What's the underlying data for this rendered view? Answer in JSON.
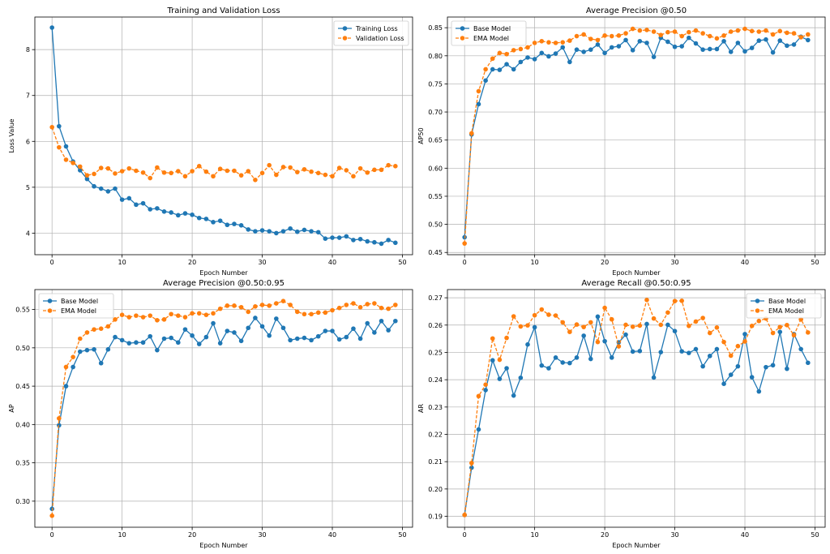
{
  "colors": {
    "series1": "#1f77b4",
    "series2": "#ff7f0e",
    "grid": "#b0b0b0",
    "axis": "#000000"
  },
  "chart_data": [
    {
      "type": "line",
      "title": "Training and Validation Loss",
      "xlabel": "Epoch Number",
      "ylabel": "Loss Value",
      "xlim": [
        -2.45,
        51.45
      ],
      "ylim": [
        3.53,
        8.71
      ],
      "xticks": [
        0,
        10,
        20,
        30,
        40,
        50
      ],
      "xtick_labels": [
        "0",
        "10",
        "20",
        "30",
        "40",
        "50"
      ],
      "yticks": [
        4,
        5,
        6,
        7,
        8
      ],
      "ytick_labels": [
        "4",
        "5",
        "6",
        "7",
        "8"
      ],
      "grid": true,
      "legend_position": "top-right",
      "series": [
        {
          "name": "Training Loss",
          "style": "solid",
          "values": [
            8.48,
            6.33,
            5.89,
            5.56,
            5.37,
            5.18,
            5.02,
            4.97,
            4.91,
            4.97,
            4.73,
            4.76,
            4.62,
            4.65,
            4.52,
            4.54,
            4.47,
            4.45,
            4.39,
            4.43,
            4.4,
            4.33,
            4.31,
            4.24,
            4.27,
            4.18,
            4.2,
            4.17,
            4.08,
            4.04,
            4.06,
            4.04,
            4.0,
            4.04,
            4.1,
            4.03,
            4.07,
            4.04,
            4.02,
            3.88,
            3.9,
            3.9,
            3.93,
            3.85,
            3.87,
            3.82,
            3.8,
            3.77,
            3.85,
            3.79
          ]
        },
        {
          "name": "Validation Loss",
          "style": "dashed",
          "values": [
            6.31,
            5.87,
            5.6,
            5.53,
            5.45,
            5.26,
            5.29,
            5.42,
            5.41,
            5.3,
            5.35,
            5.41,
            5.36,
            5.32,
            5.2,
            5.43,
            5.32,
            5.31,
            5.35,
            5.24,
            5.35,
            5.46,
            5.34,
            5.24,
            5.4,
            5.36,
            5.36,
            5.26,
            5.35,
            5.16,
            5.31,
            5.48,
            5.27,
            5.44,
            5.43,
            5.33,
            5.39,
            5.34,
            5.31,
            5.27,
            5.24,
            5.42,
            5.37,
            5.24,
            5.41,
            5.32,
            5.38,
            5.38,
            5.48,
            5.46
          ]
        }
      ]
    },
    {
      "type": "line",
      "title": "Average Precision @0.50",
      "xlabel": "Epoch Number",
      "ylabel": "AP50",
      "xlim": [
        -2.45,
        51.45
      ],
      "ylim": [
        0.446,
        0.869
      ],
      "xticks": [
        0,
        10,
        20,
        30,
        40,
        50
      ],
      "xtick_labels": [
        "0",
        "10",
        "20",
        "30",
        "40",
        "50"
      ],
      "yticks": [
        0.45,
        0.5,
        0.55,
        0.6,
        0.65,
        0.7,
        0.75,
        0.8,
        0.85
      ],
      "ytick_labels": [
        "0.45",
        "0.50",
        "0.55",
        "0.60",
        "0.65",
        "0.70",
        "0.75",
        "0.80",
        "0.85"
      ],
      "grid": true,
      "legend_position": "top-left",
      "series": [
        {
          "name": "Base Model",
          "style": "solid",
          "values": [
            0.477,
            0.66,
            0.714,
            0.756,
            0.776,
            0.775,
            0.785,
            0.776,
            0.789,
            0.797,
            0.794,
            0.805,
            0.799,
            0.804,
            0.815,
            0.789,
            0.811,
            0.807,
            0.811,
            0.82,
            0.805,
            0.815,
            0.817,
            0.828,
            0.81,
            0.826,
            0.823,
            0.798,
            0.832,
            0.825,
            0.816,
            0.817,
            0.832,
            0.822,
            0.811,
            0.812,
            0.812,
            0.826,
            0.807,
            0.823,
            0.808,
            0.814,
            0.827,
            0.829,
            0.806,
            0.827,
            0.818,
            0.82,
            0.834,
            0.828
          ]
        },
        {
          "name": "EMA Model",
          "style": "dashed",
          "values": [
            0.466,
            0.662,
            0.737,
            0.776,
            0.795,
            0.805,
            0.803,
            0.81,
            0.812,
            0.815,
            0.823,
            0.826,
            0.824,
            0.823,
            0.824,
            0.827,
            0.835,
            0.838,
            0.83,
            0.828,
            0.836,
            0.835,
            0.836,
            0.84,
            0.848,
            0.845,
            0.846,
            0.843,
            0.837,
            0.842,
            0.843,
            0.835,
            0.842,
            0.845,
            0.84,
            0.835,
            0.831,
            0.836,
            0.843,
            0.845,
            0.848,
            0.844,
            0.843,
            0.845,
            0.838,
            0.844,
            0.841,
            0.84,
            0.833,
            0.838
          ]
        }
      ]
    },
    {
      "type": "line",
      "title": "Average Precision @0.50:0.95",
      "xlabel": "Epoch Number",
      "ylabel": "AP",
      "xlim": [
        -2.45,
        51.45
      ],
      "ylim": [
        0.266,
        0.576
      ],
      "xticks": [
        0,
        10,
        20,
        30,
        40,
        50
      ],
      "xtick_labels": [
        "0",
        "10",
        "20",
        "30",
        "40",
        "50"
      ],
      "yticks": [
        0.3,
        0.35,
        0.4,
        0.45,
        0.5,
        0.55
      ],
      "ytick_labels": [
        "0.30",
        "0.35",
        "0.40",
        "0.45",
        "0.50",
        "0.55"
      ],
      "grid": true,
      "legend_position": "top-left",
      "series": [
        {
          "name": "Base Model",
          "style": "solid",
          "values": [
            0.29,
            0.399,
            0.45,
            0.475,
            0.495,
            0.497,
            0.498,
            0.48,
            0.498,
            0.514,
            0.51,
            0.506,
            0.507,
            0.507,
            0.515,
            0.497,
            0.512,
            0.513,
            0.507,
            0.524,
            0.516,
            0.505,
            0.514,
            0.532,
            0.506,
            0.522,
            0.52,
            0.509,
            0.526,
            0.539,
            0.528,
            0.516,
            0.538,
            0.526,
            0.51,
            0.512,
            0.513,
            0.51,
            0.515,
            0.522,
            0.522,
            0.511,
            0.514,
            0.525,
            0.512,
            0.532,
            0.52,
            0.535,
            0.523,
            0.535
          ]
        },
        {
          "name": "EMA Model",
          "style": "dashed",
          "values": [
            0.281,
            0.408,
            0.475,
            0.488,
            0.512,
            0.52,
            0.524,
            0.525,
            0.528,
            0.537,
            0.543,
            0.54,
            0.542,
            0.54,
            0.542,
            0.536,
            0.537,
            0.544,
            0.542,
            0.54,
            0.545,
            0.545,
            0.543,
            0.545,
            0.551,
            0.555,
            0.555,
            0.553,
            0.547,
            0.554,
            0.556,
            0.555,
            0.558,
            0.561,
            0.556,
            0.547,
            0.544,
            0.544,
            0.546,
            0.546,
            0.549,
            0.552,
            0.556,
            0.558,
            0.553,
            0.557,
            0.558,
            0.552,
            0.551,
            0.556
          ]
        }
      ]
    },
    {
      "type": "line",
      "title": "Average Recall @0.50:0.95",
      "xlabel": "Epoch Number",
      "ylabel": "AR",
      "xlim": [
        -2.45,
        51.45
      ],
      "ylim": [
        0.186,
        0.273
      ],
      "xticks": [
        0,
        10,
        20,
        30,
        40,
        50
      ],
      "xtick_labels": [
        "0",
        "10",
        "20",
        "30",
        "40",
        "50"
      ],
      "yticks": [
        0.19,
        0.2,
        0.21,
        0.22,
        0.23,
        0.24,
        0.25,
        0.26,
        0.27
      ],
      "ytick_labels": [
        "0.19",
        "0.20",
        "0.21",
        "0.22",
        "0.23",
        "0.24",
        "0.25",
        "0.26",
        "0.27"
      ],
      "grid": true,
      "legend_position": "top-right",
      "series": [
        {
          "name": "Base Model",
          "style": "solid",
          "values": [
            0.1905,
            0.2078,
            0.2218,
            0.2362,
            0.2471,
            0.2403,
            0.2442,
            0.2342,
            0.2407,
            0.2529,
            0.2592,
            0.2452,
            0.2442,
            0.2481,
            0.2463,
            0.2461,
            0.2481,
            0.2561,
            0.2476,
            0.2631,
            0.2541,
            0.2481,
            0.2537,
            0.2565,
            0.2503,
            0.2505,
            0.2604,
            0.2408,
            0.2501,
            0.2601,
            0.2578,
            0.2504,
            0.2498,
            0.2512,
            0.2449,
            0.2487,
            0.2512,
            0.2385,
            0.2418,
            0.2449,
            0.2567,
            0.2409,
            0.2357,
            0.2446,
            0.2453,
            0.2575,
            0.244,
            0.2567,
            0.2512,
            0.2462
          ]
        },
        {
          "name": "EMA Model",
          "style": "dashed",
          "values": [
            0.1905,
            0.2095,
            0.234,
            0.2382,
            0.2551,
            0.2473,
            0.2553,
            0.2632,
            0.2595,
            0.2599,
            0.2636,
            0.2657,
            0.2638,
            0.2635,
            0.261,
            0.2575,
            0.2602,
            0.2593,
            0.261,
            0.2538,
            0.2663,
            0.2621,
            0.2522,
            0.2601,
            0.2594,
            0.2598,
            0.2692,
            0.2624,
            0.2601,
            0.2646,
            0.2688,
            0.2689,
            0.2597,
            0.2613,
            0.2626,
            0.2571,
            0.2591,
            0.2538,
            0.2488,
            0.2523,
            0.254,
            0.2597,
            0.2615,
            0.2624,
            0.2571,
            0.2593,
            0.26,
            0.2563,
            0.2621,
            0.2573
          ]
        }
      ]
    }
  ]
}
